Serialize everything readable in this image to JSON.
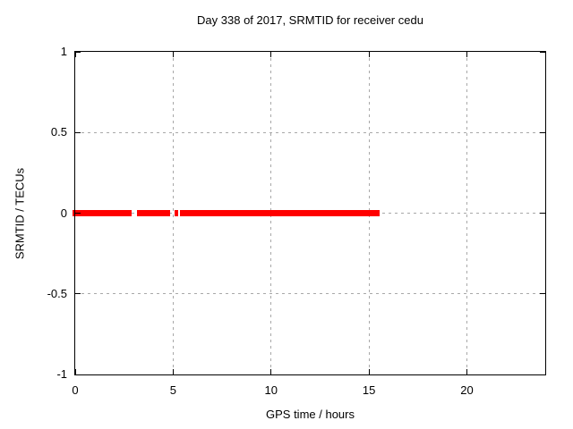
{
  "chart_data": {
    "type": "line",
    "title": "Day 338 of 2017, SRMTID for receiver cedu",
    "xlabel": "GPS time / hours",
    "ylabel": "SRMTID / TECUs",
    "xlim": [
      0,
      24
    ],
    "ylim": [
      -1,
      1
    ],
    "grid": true,
    "legend": "none",
    "x_ticks": [
      {
        "v": 0,
        "label": "0"
      },
      {
        "v": 5,
        "label": "5"
      },
      {
        "v": 10,
        "label": "10"
      },
      {
        "v": 15,
        "label": "15"
      },
      {
        "v": 20,
        "label": "20"
      }
    ],
    "y_ticks": [
      {
        "v": -1,
        "label": "-1"
      },
      {
        "v": -0.5,
        "label": "-0.5"
      },
      {
        "v": 0,
        "label": "0"
      },
      {
        "v": 0.5,
        "label": "0.5"
      },
      {
        "v": 1,
        "label": "1"
      }
    ],
    "series": [
      {
        "name": "SRMTID",
        "y_value": 0,
        "color": "#ff0000",
        "thickness_px": 7,
        "segments_hours": [
          [
            -0.15,
            2.9
          ],
          [
            3.15,
            4.85
          ],
          [
            5.08,
            5.26
          ],
          [
            5.36,
            15.52
          ]
        ]
      }
    ],
    "colors": {
      "background": "#ffffff",
      "axis": "#000000",
      "grid": "#a8a8a8",
      "text": "#000000",
      "series": "#ff0000"
    }
  }
}
